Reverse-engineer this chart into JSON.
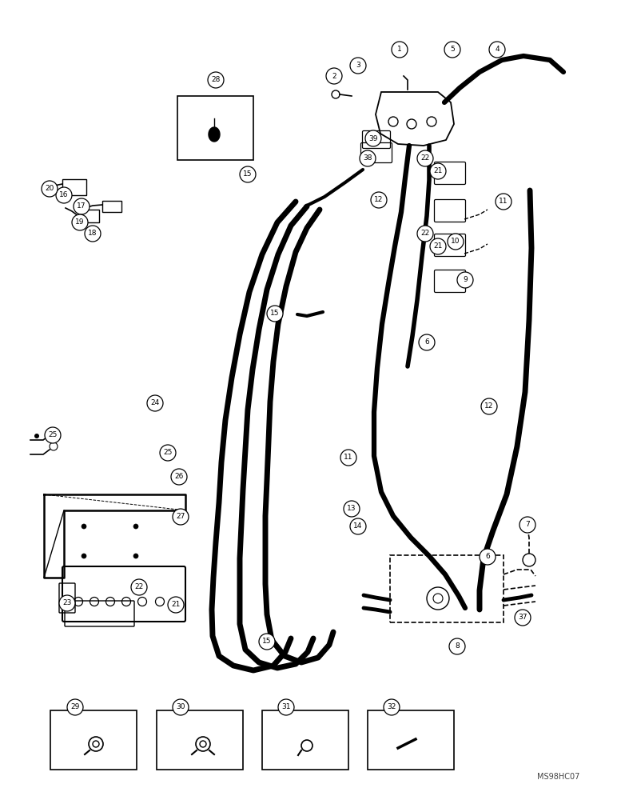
{
  "bg_color": "#ffffff",
  "watermark": "MS98HC07",
  "labels": [
    [
      "1",
      500,
      62
    ],
    [
      "2",
      418,
      95
    ],
    [
      "3",
      448,
      82
    ],
    [
      "4",
      622,
      62
    ],
    [
      "5",
      566,
      62
    ],
    [
      "6",
      534,
      428
    ],
    [
      "6",
      610,
      696
    ],
    [
      "7",
      660,
      656
    ],
    [
      "8",
      572,
      808
    ],
    [
      "9",
      582,
      350
    ],
    [
      "10",
      570,
      302
    ],
    [
      "11",
      630,
      252
    ],
    [
      "11",
      436,
      572
    ],
    [
      "12",
      474,
      250
    ],
    [
      "12",
      612,
      508
    ],
    [
      "13",
      440,
      636
    ],
    [
      "14",
      448,
      658
    ],
    [
      "15",
      310,
      218
    ],
    [
      "15",
      344,
      392
    ],
    [
      "15",
      334,
      802
    ],
    [
      "16",
      80,
      244
    ],
    [
      "17",
      102,
      258
    ],
    [
      "18",
      116,
      292
    ],
    [
      "19",
      100,
      278
    ],
    [
      "20",
      62,
      236
    ],
    [
      "21",
      548,
      214
    ],
    [
      "21",
      548,
      308
    ],
    [
      "21",
      220,
      756
    ],
    [
      "22",
      532,
      198
    ],
    [
      "22",
      532,
      292
    ],
    [
      "22",
      174,
      734
    ],
    [
      "23",
      84,
      754
    ],
    [
      "24",
      194,
      504
    ],
    [
      "25",
      66,
      544
    ],
    [
      "25",
      210,
      566
    ],
    [
      "26",
      224,
      596
    ],
    [
      "27",
      226,
      646
    ],
    [
      "28",
      270,
      100
    ],
    [
      "29",
      94,
      884
    ],
    [
      "30",
      226,
      884
    ],
    [
      "31",
      358,
      884
    ],
    [
      "32",
      490,
      884
    ],
    [
      "37",
      654,
      772
    ],
    [
      "38",
      460,
      198
    ],
    [
      "39",
      467,
      173
    ]
  ]
}
